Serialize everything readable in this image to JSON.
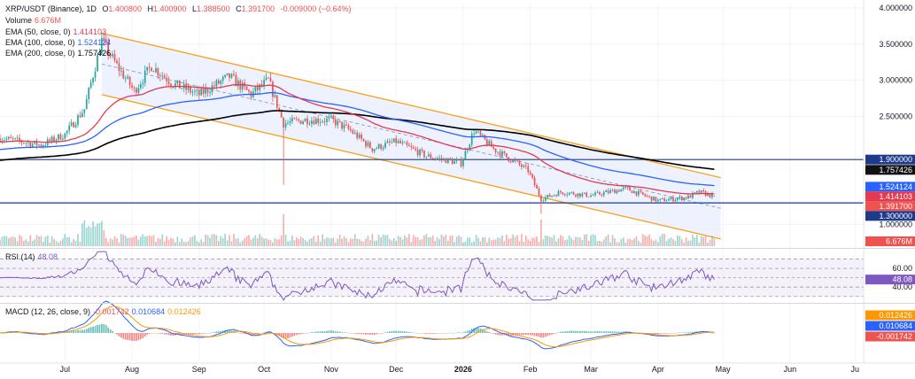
{
  "header": {
    "symbol": "XRP/USDT (Binance), 1D",
    "open_label": "O",
    "open": "1.400800",
    "high_label": "H",
    "high": "1.400900",
    "low_label": "L",
    "low": "1.388500",
    "close_label": "C",
    "close": "1.391700",
    "change": "-0.009000 (−0.64%)"
  },
  "legend": {
    "volume": {
      "label": "Volume",
      "value": "6.676M"
    },
    "ema50": {
      "label": "EMA (50, close, 0)",
      "value": "1.414103"
    },
    "ema100": {
      "label": "EMA (100, close, 0)",
      "value": "1.524124"
    },
    "ema200": {
      "label": "EMA (200, close, 0)",
      "value": "1.757426"
    },
    "rsi": {
      "label": "RSI (14)",
      "value": "48.08"
    },
    "macd": {
      "label": "MACD (12, 26, close, 9)",
      "v1": "-0.001742",
      "v2": "0.010684",
      "v3": "0.012426"
    }
  },
  "axis": {
    "price_ticks": [
      "4.000000",
      "3.500000",
      "3.000000",
      "2.500000",
      "1.000000"
    ],
    "rsi_ticks": [
      "60.00",
      "40.00"
    ],
    "months": [
      "Jul",
      "Aug",
      "Sep",
      "Oct",
      "Nov",
      "Dec",
      "2026",
      "Feb",
      "Mar",
      "Apr",
      "May",
      "Jun",
      "Ju"
    ]
  },
  "price_labels": [
    {
      "text": "1.900000",
      "value": 1.9,
      "bg": "#1e3a8a",
      "fg": "#ffffff"
    },
    {
      "text": "1.757426",
      "value": 1.757426,
      "bg": "#111111",
      "fg": "#ffffff"
    },
    {
      "text": "1.524124",
      "value": 1.524124,
      "bg": "#2962ff",
      "fg": "#ffffff"
    },
    {
      "text": "1.414103",
      "value": 1.414103,
      "bg": "#e53950",
      "fg": "#ffffff"
    },
    {
      "text": "1.391700",
      "value": 1.3917,
      "bg": "#ef5350",
      "fg": "#ffffff"
    },
    {
      "text": "1.300000",
      "value": 1.3,
      "bg": "#1e3a8a",
      "fg": "#ffffff"
    }
  ],
  "volume_label": {
    "text": "6.676M",
    "bg": "#ef5350",
    "fg": "#ffffff"
  },
  "rsi_label": {
    "text": "48.08",
    "bg": "#7e57c2",
    "fg": "#ffffff"
  },
  "macd_labels": [
    {
      "text": "0.012426",
      "bg": "#ff9800",
      "fg": "#ffffff"
    },
    {
      "text": "0.010684",
      "bg": "#2962ff",
      "fg": "#ffffff"
    },
    {
      "text": "-0.001742",
      "bg": "#ef5350",
      "fg": "#ffffff"
    }
  ],
  "colors": {
    "up": "#26a69a",
    "down": "#ef5350",
    "ema50": "#e53950",
    "ema100": "#2962ff",
    "ema200": "#000000",
    "channel": "#f7a21b",
    "channel_fill": "#e8eeff",
    "hline": "#1e3a8a",
    "rsi": "#7e57c2",
    "macd": "#2962ff",
    "signal": "#ff9800"
  },
  "chart_data": {
    "type": "candlestick",
    "symbol": "XRP/USDT",
    "exchange": "Binance",
    "timeframe": "1D",
    "last_bar": {
      "open": 1.4008,
      "high": 1.4009,
      "low": 1.3885,
      "close": 1.3917,
      "change": -0.009,
      "change_pct": -0.64
    },
    "approx_price_path": [
      {
        "date": "2025-06-01",
        "close": 2.2
      },
      {
        "date": "2025-06-20",
        "close": 2.1
      },
      {
        "date": "2025-07-01",
        "close": 2.25
      },
      {
        "date": "2025-07-10",
        "close": 2.6
      },
      {
        "date": "2025-07-18",
        "close": 3.55
      },
      {
        "date": "2025-07-25",
        "close": 3.2
      },
      {
        "date": "2025-08-02",
        "close": 2.85
      },
      {
        "date": "2025-08-10",
        "close": 3.2
      },
      {
        "date": "2025-08-20",
        "close": 2.95
      },
      {
        "date": "2025-09-01",
        "close": 2.8
      },
      {
        "date": "2025-09-15",
        "close": 3.05
      },
      {
        "date": "2025-09-25",
        "close": 2.8
      },
      {
        "date": "2025-10-03",
        "close": 3.0
      },
      {
        "date": "2025-10-10",
        "close": 2.4
      },
      {
        "date": "2025-10-20",
        "close": 2.45
      },
      {
        "date": "2025-11-01",
        "close": 2.45
      },
      {
        "date": "2025-11-10",
        "close": 2.3
      },
      {
        "date": "2025-11-20",
        "close": 2.05
      },
      {
        "date": "2025-12-01",
        "close": 2.15
      },
      {
        "date": "2025-12-15",
        "close": 1.95
      },
      {
        "date": "2025-12-31",
        "close": 1.85
      },
      {
        "date": "2026-01-06",
        "close": 2.3
      },
      {
        "date": "2026-01-15",
        "close": 2.05
      },
      {
        "date": "2026-01-31",
        "close": 1.75
      },
      {
        "date": "2026-02-06",
        "close": 1.35
      },
      {
        "date": "2026-02-15",
        "close": 1.45
      },
      {
        "date": "2026-03-01",
        "close": 1.4
      },
      {
        "date": "2026-03-17",
        "close": 1.5
      },
      {
        "date": "2026-04-01",
        "close": 1.33
      },
      {
        "date": "2026-04-15",
        "close": 1.38
      },
      {
        "date": "2026-04-20",
        "close": 1.45
      },
      {
        "date": "2026-04-27",
        "close": 1.3917
      }
    ],
    "indicators": {
      "ema50": 1.414103,
      "ema100": 1.524124,
      "ema200": 1.757426,
      "volume": "6.676M",
      "rsi14": 48.08,
      "macd": {
        "macd": 0.010684,
        "signal": 0.012426,
        "histogram": -0.001742
      }
    },
    "horizontal_levels": [
      1.9,
      1.3
    ],
    "descending_channel": {
      "upper": [
        {
          "date": "2025-07-18",
          "price": 3.65
        },
        {
          "date": "2026-04-30",
          "price": 1.65
        }
      ],
      "lower": [
        {
          "date": "2025-07-18",
          "price": 2.8
        },
        {
          "date": "2026-04-30",
          "price": 0.8
        }
      ]
    },
    "price_axis_ticks": [
      4.0,
      3.5,
      3.0,
      2.5,
      1.0
    ],
    "rsi_levels": [
      70,
      60,
      50,
      40,
      30
    ],
    "x_range": [
      "2025-06-01",
      "2026-07-05"
    ],
    "y_range": [
      0.7,
      4.05
    ]
  }
}
